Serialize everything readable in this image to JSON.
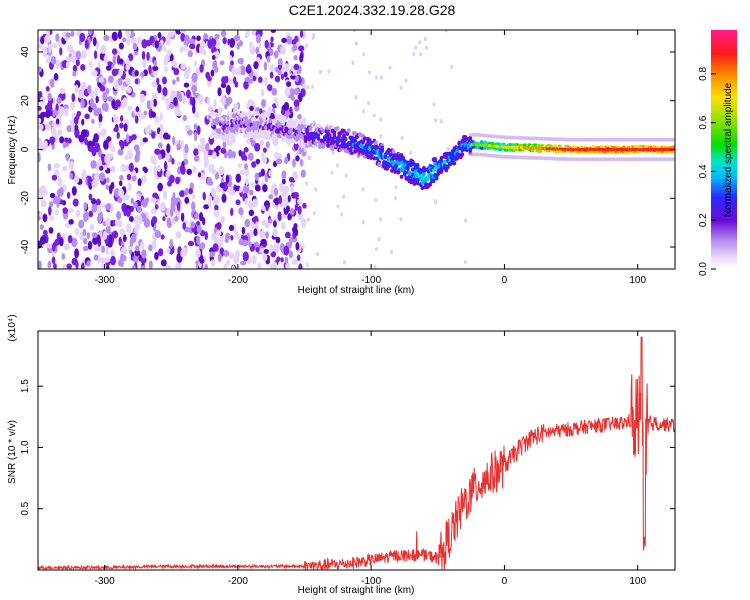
{
  "title": "C2E1.2024.332.19.28.G28",
  "colors": {
    "snr_line": "#e8302e",
    "spectrogram_low": "#6a0dd8"
  },
  "colorbar": {
    "label": "Normalized spectral amplitude",
    "ticks": [
      "0.0",
      "0.2",
      "0.4",
      "0.6",
      "0.8"
    ],
    "tick_values": [
      0.0,
      0.2,
      0.4,
      0.6,
      0.8
    ],
    "range": [
      0,
      0.98
    ]
  },
  "chart_data": [
    {
      "type": "heatmap",
      "name": "spectrogram",
      "xlabel": "Height of straight line (km)",
      "ylabel": "Frequency (Hz)",
      "xlim": [
        -350,
        128
      ],
      "ylim": [
        -49,
        49
      ],
      "xticks": [
        -300,
        -200,
        -100,
        0,
        100
      ],
      "xtick_labels": [
        "-300",
        "-200",
        "-100",
        "0",
        "100"
      ],
      "yticks": [
        -40,
        -20,
        0,
        20,
        40
      ],
      "ytick_labels": [
        "-40",
        "-20",
        "0",
        "20",
        "40"
      ],
      "ridge": {
        "x": [
          -215,
          -180,
          -150,
          -120,
          -100,
          -80,
          -60,
          -50,
          -40,
          -30,
          -20,
          0,
          50,
          100,
          128
        ],
        "y": [
          10,
          10,
          6,
          4,
          0,
          -6,
          -12,
          -7,
          -4,
          2,
          2,
          1,
          0,
          0,
          0
        ]
      }
    },
    {
      "type": "line",
      "name": "snr",
      "xlabel": "Height of straight line (km)",
      "ylabel": "SNR (10 * v/v)",
      "yscale_label": "(x10⁴)",
      "xlim": [
        -350,
        128
      ],
      "ylim": [
        0,
        1.95
      ],
      "xticks": [
        -300,
        -200,
        -100,
        0,
        100
      ],
      "xtick_labels": [
        "-300",
        "-200",
        "-100",
        "0",
        "100"
      ],
      "yticks": [
        0.5,
        1.0,
        1.5
      ],
      "ytick_labels": [
        "0.5",
        "1.0",
        "1.5"
      ],
      "series": [
        {
          "x": [
            -350,
            -300,
            -250,
            -200,
            -150,
            -120,
            -100,
            -80,
            -60,
            -50,
            -40,
            -30,
            -20,
            -10,
            0,
            10,
            20,
            30,
            50,
            70,
            90,
            100,
            110,
            128
          ],
          "y": [
            0.02,
            0.02,
            0.03,
            0.03,
            0.03,
            0.05,
            0.08,
            0.12,
            0.12,
            0.1,
            0.3,
            0.55,
            0.7,
            0.78,
            0.85,
            0.98,
            1.08,
            1.12,
            1.15,
            1.18,
            1.2,
            1.25,
            1.2,
            1.18
          ]
        }
      ]
    }
  ]
}
